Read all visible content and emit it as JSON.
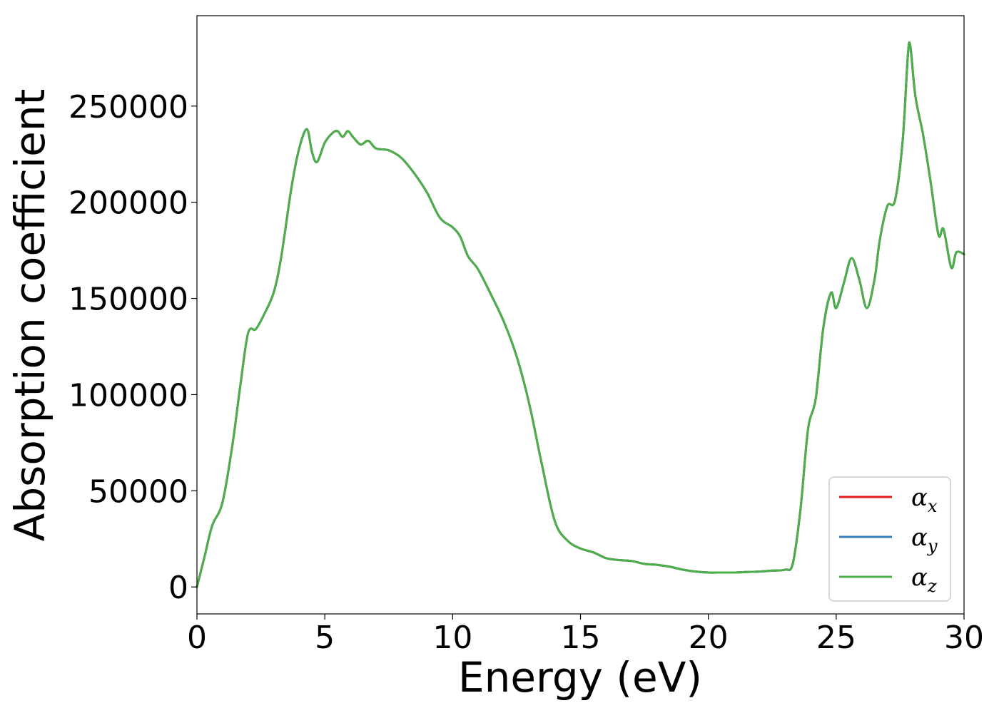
{
  "chart_data": {
    "type": "line",
    "xlabel": "Energy (eV)",
    "ylabel": "Absorption coefficient",
    "xlim": [
      0,
      30
    ],
    "ylim": [
      -14000,
      297000
    ],
    "xticks": [
      0,
      5,
      10,
      15,
      20,
      25,
      30
    ],
    "xtick_labels": [
      "0",
      "5",
      "10",
      "15",
      "20",
      "25",
      "30"
    ],
    "yticks": [
      0,
      50000,
      100000,
      150000,
      200000,
      250000
    ],
    "ytick_labels": [
      "0",
      "50000",
      "100000",
      "150000",
      "200000",
      "250000"
    ],
    "grid": false,
    "legend_position": "bottom-right",
    "x": [
      0,
      0.3,
      0.6,
      1.0,
      1.4,
      1.7,
      2.0,
      2.3,
      2.6,
      3.0,
      3.3,
      3.7,
      4.0,
      4.3,
      4.5,
      4.7,
      5.0,
      5.3,
      5.5,
      5.7,
      5.9,
      6.1,
      6.4,
      6.7,
      7.0,
      7.5,
      8.0,
      8.5,
      9.0,
      9.5,
      10.0,
      10.3,
      10.6,
      11.0,
      11.5,
      12.0,
      12.5,
      13.0,
      13.5,
      14.0,
      14.5,
      15.0,
      15.5,
      16.0,
      16.5,
      17.0,
      17.5,
      18.0,
      18.5,
      19.0,
      19.5,
      20.0,
      20.5,
      21.0,
      21.5,
      22.0,
      22.5,
      23.0,
      23.3,
      23.6,
      23.9,
      24.2,
      24.5,
      24.8,
      25.0,
      25.3,
      25.6,
      25.9,
      26.2,
      26.5,
      26.7,
      27.0,
      27.3,
      27.6,
      27.8,
      27.9,
      28.1,
      28.4,
      28.7,
      29.0,
      29.2,
      29.5,
      29.7,
      30.0
    ],
    "series": [
      {
        "name": "α_x",
        "color": "#e41a1c",
        "values": [
          0,
          16000,
          32000,
          44000,
          75000,
          105000,
          132000,
          134000,
          141000,
          153000,
          172000,
          208000,
          228000,
          238000,
          226000,
          221000,
          231000,
          236000,
          237000,
          234000,
          237000,
          234000,
          230000,
          232000,
          228000,
          227000,
          223000,
          215000,
          205000,
          192000,
          187000,
          182000,
          172000,
          165000,
          152000,
          138000,
          120000,
          95000,
          63000,
          34000,
          24000,
          20000,
          18000,
          15000,
          14000,
          13500,
          12000,
          11500,
          10500,
          9000,
          8000,
          7500,
          7500,
          7500,
          7800,
          8000,
          8500,
          9000,
          12000,
          40000,
          82000,
          98000,
          135000,
          153000,
          145000,
          158000,
          171000,
          160000,
          145000,
          160000,
          180000,
          198000,
          201000,
          232000,
          276000,
          281000,
          255000,
          235000,
          210000,
          183000,
          186000,
          166000,
          174000,
          173000
        ]
      },
      {
        "name": "α_y",
        "color": "#377eb8",
        "values": [
          0,
          16000,
          32000,
          44000,
          75000,
          105000,
          132000,
          134000,
          141000,
          153000,
          172000,
          208000,
          228000,
          238000,
          226000,
          221000,
          231000,
          236000,
          237000,
          234000,
          237000,
          234000,
          230000,
          232000,
          228000,
          227000,
          223000,
          215000,
          205000,
          192000,
          187000,
          182000,
          172000,
          165000,
          152000,
          138000,
          120000,
          95000,
          63000,
          34000,
          24000,
          20000,
          18000,
          15000,
          14000,
          13500,
          12000,
          11500,
          10500,
          9000,
          8000,
          7500,
          7500,
          7500,
          7800,
          8000,
          8500,
          9000,
          12000,
          40000,
          82000,
          98000,
          135000,
          153000,
          145000,
          158000,
          171000,
          160000,
          145000,
          160000,
          180000,
          198000,
          201000,
          232000,
          276000,
          281000,
          255000,
          235000,
          210000,
          183000,
          186000,
          166000,
          174000,
          173000
        ]
      },
      {
        "name": "α_z",
        "color": "#4daf4a",
        "values": [
          0,
          16000,
          32000,
          44000,
          75000,
          105000,
          132000,
          134000,
          141000,
          153000,
          172000,
          208000,
          228000,
          238000,
          226000,
          221000,
          231000,
          236000,
          237000,
          234000,
          237000,
          234000,
          230000,
          232000,
          228000,
          227000,
          223000,
          215000,
          205000,
          192000,
          187000,
          182000,
          172000,
          165000,
          152000,
          138000,
          120000,
          95000,
          63000,
          34000,
          24000,
          20000,
          18000,
          15000,
          14000,
          13500,
          12000,
          11500,
          10500,
          9000,
          8000,
          7500,
          7500,
          7500,
          7800,
          8000,
          8500,
          9000,
          12000,
          40000,
          82000,
          98000,
          135000,
          153000,
          145000,
          158000,
          171000,
          160000,
          145000,
          160000,
          180000,
          198000,
          201000,
          232000,
          276000,
          281000,
          255000,
          235000,
          210000,
          183000,
          186000,
          166000,
          174000,
          173000
        ]
      }
    ],
    "legend": [
      {
        "symbol": "α",
        "subscript": "x"
      },
      {
        "symbol": "α",
        "subscript": "y"
      },
      {
        "symbol": "α",
        "subscript": "z"
      }
    ]
  }
}
